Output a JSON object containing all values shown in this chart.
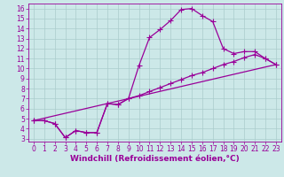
{
  "xlabel": "Windchill (Refroidissement éolien,°C)",
  "bg_color": "#cce8e8",
  "line_color": "#990099",
  "xlim": [
    -0.5,
    23.5
  ],
  "ylim": [
    2.7,
    16.5
  ],
  "xticks": [
    0,
    1,
    2,
    3,
    4,
    5,
    6,
    7,
    8,
    9,
    10,
    11,
    12,
    13,
    14,
    15,
    16,
    17,
    18,
    19,
    20,
    21,
    22,
    23
  ],
  "yticks": [
    3,
    4,
    5,
    6,
    7,
    8,
    9,
    10,
    11,
    12,
    13,
    14,
    15,
    16
  ],
  "line1_x": [
    0,
    1,
    2,
    3,
    4,
    5,
    6,
    7,
    8,
    9,
    10,
    11,
    12,
    13,
    14,
    15,
    16,
    17,
    18,
    19,
    20,
    21,
    22,
    23
  ],
  "line1_y": [
    4.8,
    4.8,
    4.5,
    3.1,
    3.8,
    3.6,
    3.6,
    6.5,
    6.4,
    7.0,
    10.3,
    13.1,
    13.9,
    14.8,
    15.9,
    16.0,
    15.3,
    14.7,
    12.0,
    11.5,
    11.7,
    11.7,
    11.0,
    10.4
  ],
  "line2_x": [
    0,
    1,
    2,
    3,
    4,
    5,
    6,
    7,
    8,
    9,
    10,
    11,
    12,
    13,
    14,
    15,
    16,
    17,
    18,
    19,
    20,
    21,
    22,
    23
  ],
  "line2_y": [
    4.8,
    4.8,
    4.5,
    3.1,
    3.8,
    3.6,
    3.6,
    6.5,
    6.4,
    7.0,
    7.3,
    7.7,
    8.1,
    8.5,
    8.9,
    9.3,
    9.6,
    10.0,
    10.4,
    10.7,
    11.1,
    11.4,
    11.0,
    10.4
  ],
  "line3_x": [
    0,
    23
  ],
  "line3_y": [
    4.8,
    10.4
  ],
  "marker": "+",
  "markersize": 4,
  "linewidth": 0.9,
  "xlabel_fontsize": 6.5,
  "tick_fontsize": 5.5,
  "grid_color": "#aacccc",
  "grid_linewidth": 0.5
}
